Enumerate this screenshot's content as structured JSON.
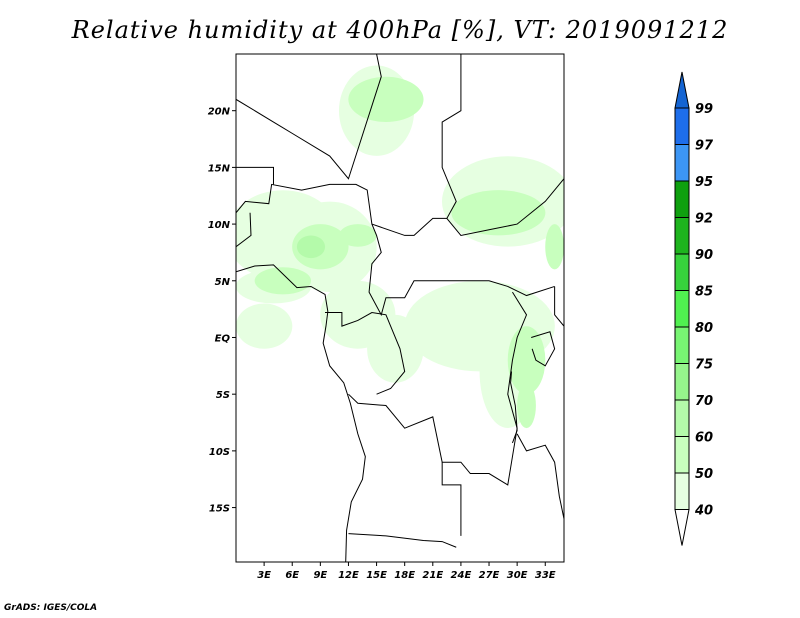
{
  "title": "Relative humidity at 400hPa [%], VT: 2019091212",
  "footer": "GrADS: IGES/COLA",
  "map": {
    "lat_ticks": [
      "20N",
      "15N",
      "10N",
      "5N",
      "EQ",
      "5S",
      "10S",
      "15S"
    ],
    "lat_values": [
      20,
      15,
      10,
      5,
      0,
      -5,
      -10,
      -15
    ],
    "lon_ticks": [
      "3E",
      "6E",
      "9E",
      "12E",
      "15E",
      "18E",
      "21E",
      "24E",
      "27E",
      "30E",
      "33E"
    ],
    "lon_values": [
      3,
      6,
      9,
      12,
      15,
      18,
      21,
      24,
      27,
      30,
      33
    ],
    "lon_range": [
      0,
      35
    ],
    "lat_range": [
      -19.8,
      25
    ]
  },
  "colorbar": {
    "labels": [
      "99",
      "97",
      "95",
      "92",
      "90",
      "85",
      "80",
      "75",
      "70",
      "60",
      "50",
      "40"
    ],
    "colors": [
      "#1e6eeb",
      "#3c96f5",
      "#0fa00f",
      "#1eb41e",
      "#37d23c",
      "#50f050",
      "#78f573",
      "#96f58c",
      "#b4faaa",
      "#c8ffbe",
      "#e6ffe1"
    ],
    "over_color": "#1464d2",
    "under_color": "#ffffff"
  }
}
